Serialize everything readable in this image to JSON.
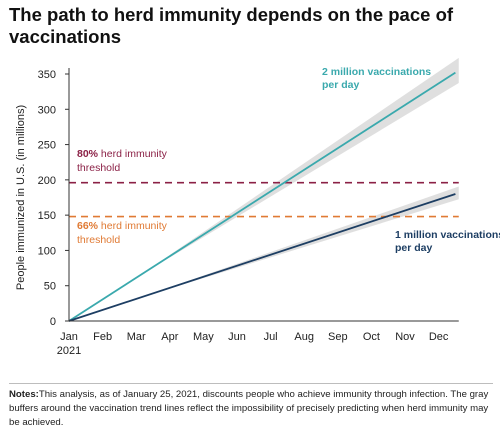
{
  "chart_data": {
    "type": "line",
    "title": "The path to herd immunity depends on the pace of vaccinations",
    "ylabel": "People immunized in U.S. (in millions)",
    "xlabel": "",
    "ylim": [
      0,
      350
    ],
    "yticks": [
      0,
      50,
      100,
      150,
      200,
      250,
      300,
      350
    ],
    "x_categories": [
      "Jan 2021",
      "Feb",
      "Mar",
      "Apr",
      "May",
      "Jun",
      "Jul",
      "Aug",
      "Sep",
      "Oct",
      "Nov",
      "Dec"
    ],
    "x_tick_labels": [
      {
        "line1": "Jan",
        "line2": "2021"
      },
      {
        "line1": "Feb"
      },
      {
        "line1": "Mar"
      },
      {
        "line1": "Apr"
      },
      {
        "line1": "May"
      },
      {
        "line1": "Jun"
      },
      {
        "line1": "Jul"
      },
      {
        "line1": "Aug"
      },
      {
        "line1": "Sep"
      },
      {
        "line1": "Oct"
      },
      {
        "line1": "Nov"
      },
      {
        "line1": "Dec"
      }
    ],
    "xlim": [
      0,
      11.6
    ],
    "series": [
      {
        "name": "2 million vaccinations per day",
        "label_lines": [
          "2 million vaccinations",
          "per day"
        ],
        "color": "#3aa9ad",
        "x": [
          0,
          11.5
        ],
        "y": [
          0,
          352
        ],
        "band_frac": 0.05
      },
      {
        "name": "1 million vaccinations per day",
        "label_lines": [
          "1 million vaccinations",
          "per day"
        ],
        "color": "#1d3e63",
        "x": [
          0,
          11.5
        ],
        "y": [
          0,
          180
        ],
        "band_frac": 0.05
      }
    ],
    "thresholds": [
      {
        "value": 196,
        "color": "#8b2146",
        "label_bold": "80%",
        "label_line1_rest": " herd immunity",
        "label_line2": "threshold"
      },
      {
        "value": 148,
        "color": "#e07a34",
        "label_bold": "66%",
        "label_line1_rest": " herd immunity",
        "label_line2": "threshold"
      }
    ],
    "grid": false,
    "legend": "inline labels"
  },
  "notes": {
    "label": "Notes:",
    "text": "This analysis, as of January 25, 2021, discounts people who achieve immunity through infection. The gray buffers around the vaccination trend lines reflect the impossibility of precisely predicting when herd immunity may be achieved."
  }
}
